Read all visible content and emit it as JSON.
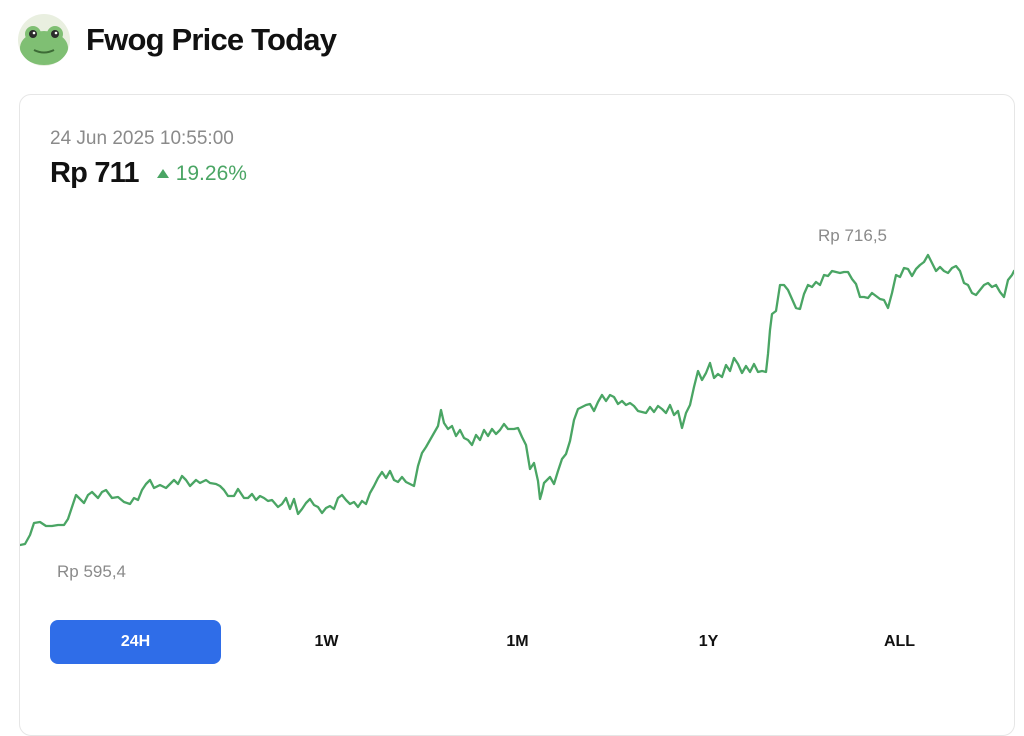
{
  "header": {
    "title": "Fwog Price Today",
    "logo_icon": "frog-avatar-icon"
  },
  "card": {
    "timestamp": "24 Jun 2025 10:55:00",
    "price": "Rp 711",
    "change": {
      "icon": "triangle-up-icon",
      "text": "19.26%",
      "color": "#4aa564"
    },
    "chart": {
      "high_label": "Rp 716,5",
      "low_label": "Rp 595,4",
      "line_color": "#4aa564"
    },
    "range_tabs": [
      {
        "label": "24H",
        "active": true
      },
      {
        "label": "1W",
        "active": false
      },
      {
        "label": "1M",
        "active": false
      },
      {
        "label": "1Y",
        "active": false
      },
      {
        "label": "ALL",
        "active": false
      }
    ],
    "accent_color": "#2f6de8"
  }
}
